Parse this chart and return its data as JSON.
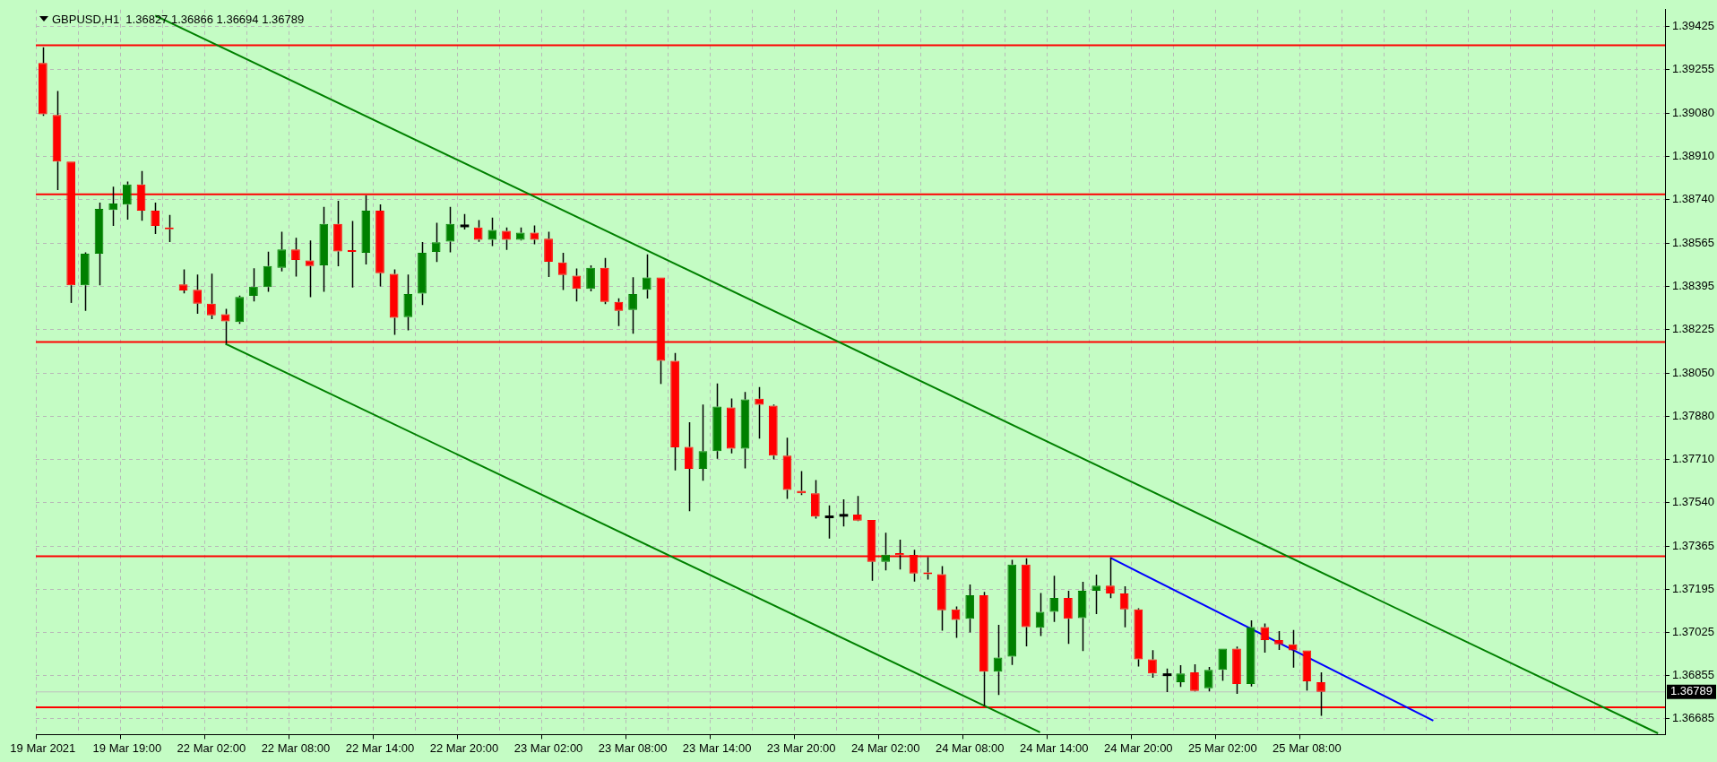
{
  "chart_data": {
    "type": "candlestick",
    "title": "GBPUSD,H1  1.36827 1.36866 1.36694 1.36789",
    "categories": [
      "19 Mar 2021",
      null,
      null,
      null,
      null,
      null,
      "19 Mar 19:00",
      null,
      null,
      null,
      null,
      null,
      "22 Mar 02:00",
      null,
      null,
      null,
      null,
      null,
      "22 Mar 08:00",
      null,
      null,
      null,
      null,
      null,
      "22 Mar 14:00",
      null,
      null,
      null,
      null,
      null,
      "22 Mar 20:00",
      null,
      null,
      null,
      null,
      null,
      "23 Mar 02:00",
      null,
      null,
      null,
      null,
      null,
      "23 Mar 08:00",
      null,
      null,
      null,
      null,
      null,
      "23 Mar 14:00",
      null,
      null,
      null,
      null,
      null,
      "23 Mar 20:00",
      null,
      null,
      null,
      null,
      null,
      "24 Mar 02:00",
      null,
      null,
      null,
      null,
      null,
      "24 Mar 08:00",
      null,
      null,
      null,
      null,
      null,
      "24 Mar 14:00",
      null,
      null,
      null,
      null,
      null,
      "24 Mar 20:00",
      null,
      null,
      null,
      null,
      null,
      "25 Mar 02:00",
      null,
      null,
      null,
      null,
      null,
      "25 Mar 08:00",
      null,
      null,
      null,
      null,
      null,
      null,
      null,
      null,
      null,
      null,
      null,
      null,
      null,
      null,
      null,
      null,
      null,
      null,
      null,
      null,
      null,
      null,
      null,
      null,
      null
    ],
    "ohlc": [
      [
        1.39279,
        1.39341,
        1.3907,
        1.39076
      ],
      [
        1.39073,
        1.39168,
        1.38776,
        1.38889
      ],
      [
        1.38889,
        1.38889,
        1.38329,
        1.38399
      ],
      [
        1.38399,
        1.38529,
        1.38298,
        1.38524
      ],
      [
        1.38524,
        1.38726,
        1.38399,
        1.38701
      ],
      [
        1.38697,
        1.38789,
        1.38634,
        1.38723
      ],
      [
        1.38718,
        1.3881,
        1.38659,
        1.38798
      ],
      [
        1.38798,
        1.38851,
        1.38654,
        1.38694
      ],
      [
        1.38694,
        1.38726,
        1.38602,
        1.38634
      ],
      [
        1.38628,
        1.38677,
        1.3857,
        1.38621
      ],
      [
        1.38402,
        1.38462,
        1.38367,
        1.38378
      ],
      [
        1.38381,
        1.38441,
        1.38286,
        1.38326
      ],
      [
        1.38326,
        1.38445,
        1.38265,
        1.3828
      ],
      [
        1.38284,
        1.38306,
        1.38167,
        1.38256
      ],
      [
        1.38253,
        1.38358,
        1.38246,
        1.38353
      ],
      [
        1.38357,
        1.38466,
        1.38335,
        1.38393
      ],
      [
        1.38392,
        1.38532,
        1.38373,
        1.38475
      ],
      [
        1.38468,
        1.38611,
        1.38454,
        1.38541
      ],
      [
        1.38541,
        1.38587,
        1.38433,
        1.38499
      ],
      [
        1.38497,
        1.38576,
        1.38352,
        1.38475
      ],
      [
        1.38478,
        1.38709,
        1.38373,
        1.38642
      ],
      [
        1.38642,
        1.38733,
        1.38474,
        1.38533
      ],
      [
        1.38538,
        1.38653,
        1.3839,
        1.38531
      ],
      [
        1.38527,
        1.38755,
        1.38481,
        1.38694
      ],
      [
        1.38694,
        1.38719,
        1.38394,
        1.38447
      ],
      [
        1.38444,
        1.38462,
        1.38203,
        1.3827
      ],
      [
        1.38273,
        1.38441,
        1.3822,
        1.38364
      ],
      [
        1.38366,
        1.3857,
        1.38321,
        1.38527
      ],
      [
        1.38531,
        1.38646,
        1.38491,
        1.38569
      ],
      [
        1.38572,
        1.38709,
        1.38529,
        1.38642
      ],
      [
        1.38634,
        1.38681,
        1.3862,
        1.38634
      ],
      [
        1.38628,
        1.38657,
        1.38571,
        1.38579
      ],
      [
        1.38579,
        1.38667,
        1.38554,
        1.38618
      ],
      [
        1.38614,
        1.38628,
        1.38539,
        1.38579
      ],
      [
        1.38579,
        1.38628,
        1.38576,
        1.38607
      ],
      [
        1.38607,
        1.38636,
        1.38561,
        1.38579
      ],
      [
        1.38583,
        1.38611,
        1.38432,
        1.38492
      ],
      [
        1.38489,
        1.38527,
        1.3838,
        1.3844
      ],
      [
        1.38437,
        1.38465,
        1.38335,
        1.38385
      ],
      [
        1.38385,
        1.38478,
        1.38375,
        1.38468
      ],
      [
        1.38468,
        1.38507,
        1.38324,
        1.38333
      ],
      [
        1.38333,
        1.38347,
        1.38237,
        1.38298
      ],
      [
        1.38301,
        1.38431,
        1.38207,
        1.38364
      ],
      [
        1.38381,
        1.38521,
        1.38346,
        1.3843
      ],
      [
        1.3843,
        1.3843,
        1.38008,
        1.381
      ],
      [
        1.381,
        1.38131,
        1.37666,
        1.37757
      ],
      [
        1.37759,
        1.37857,
        1.37504,
        1.37672
      ],
      [
        1.37672,
        1.37927,
        1.37625,
        1.37742
      ],
      [
        1.37742,
        1.3801,
        1.37712,
        1.37919
      ],
      [
        1.37915,
        1.37951,
        1.37733,
        1.37752
      ],
      [
        1.37752,
        1.37976,
        1.37674,
        1.37947
      ],
      [
        1.3795,
        1.37996,
        1.37792,
        1.37926
      ],
      [
        1.37922,
        1.37927,
        1.37709,
        1.37724
      ],
      [
        1.37724,
        1.37795,
        1.37553,
        1.37589
      ],
      [
        1.37585,
        1.37663,
        1.37568,
        1.37575
      ],
      [
        1.37575,
        1.37628,
        1.37475,
        1.37483
      ],
      [
        1.37482,
        1.37527,
        1.37396,
        1.37482
      ],
      [
        1.37488,
        1.37551,
        1.37444,
        1.37488
      ],
      [
        1.37491,
        1.37565,
        1.37465,
        1.37467
      ],
      [
        1.3747,
        1.3747,
        1.37229,
        1.37304
      ],
      [
        1.37304,
        1.37419,
        1.3727,
        1.37332
      ],
      [
        1.37338,
        1.37392,
        1.37274,
        1.3733
      ],
      [
        1.37331,
        1.37352,
        1.37226,
        1.37258
      ],
      [
        1.37262,
        1.37322,
        1.37234,
        1.37255
      ],
      [
        1.37255,
        1.37287,
        1.37031,
        1.37112
      ],
      [
        1.37116,
        1.37127,
        1.37003,
        1.37074
      ],
      [
        1.37078,
        1.37214,
        1.37024,
        1.37172
      ],
      [
        1.37172,
        1.37185,
        1.36734,
        1.36869
      ],
      [
        1.36869,
        1.37054,
        1.36777,
        1.36925
      ],
      [
        1.36928,
        1.37312,
        1.36896,
        1.37293
      ],
      [
        1.37293,
        1.37318,
        1.36969,
        1.37046
      ],
      [
        1.37043,
        1.3718,
        1.3701,
        1.37106
      ],
      [
        1.37106,
        1.37249,
        1.37066,
        1.37161
      ],
      [
        1.37161,
        1.37189,
        1.36979,
        1.37078
      ],
      [
        1.37081,
        1.37225,
        1.36951,
        1.37189
      ],
      [
        1.37189,
        1.37253,
        1.37097,
        1.3721
      ],
      [
        1.3721,
        1.3732,
        1.3716,
        1.37179
      ],
      [
        1.37179,
        1.37207,
        1.37045,
        1.37116
      ],
      [
        1.37116,
        1.3712,
        1.36889,
        1.36918
      ],
      [
        1.36918,
        1.36954,
        1.36845,
        1.36862
      ],
      [
        1.36857,
        1.36881,
        1.36788,
        1.36857
      ],
      [
        1.36827,
        1.36895,
        1.36809,
        1.36862
      ],
      [
        1.36866,
        1.36898,
        1.36791,
        1.36793
      ],
      [
        1.36803,
        1.36888,
        1.36791,
        1.36876
      ],
      [
        1.36876,
        1.3696,
        1.36833,
        1.3696
      ],
      [
        1.3696,
        1.36968,
        1.36781,
        1.3682
      ],
      [
        1.3682,
        1.37072,
        1.3681,
        1.37046
      ],
      [
        1.37046,
        1.3706,
        1.36944,
        1.36994
      ],
      [
        1.36994,
        1.3703,
        1.36955,
        1.36977
      ],
      [
        1.36977,
        1.37034,
        1.36885,
        1.36953
      ],
      [
        1.36953,
        1.36953,
        1.36794,
        1.36831
      ],
      [
        1.36827,
        1.36866,
        1.36694,
        1.36789
      ],
      null,
      null,
      null,
      null,
      null,
      null,
      null,
      null,
      null,
      null,
      null,
      null,
      null,
      null,
      null,
      null,
      null,
      null,
      null,
      null,
      null,
      null,
      null,
      null
    ],
    "colors": [
      "#ff0000",
      "#ff0000",
      "#ff0000",
      "#008000",
      "#008000",
      "#008000",
      "#008000",
      "#ff0000",
      "#ff0000",
      "#ff0000",
      "#ff0000",
      "#ff0000",
      "#ff0000",
      "#ff0000",
      "#008000",
      "#008000",
      "#008000",
      "#008000",
      "#ff0000",
      "#ff0000",
      "#008000",
      "#ff0000",
      "#ff0000",
      "#008000",
      "#ff0000",
      "#ff0000",
      "#008000",
      "#008000",
      "#008000",
      "#008000",
      "#000000",
      "#ff0000",
      "#008000",
      "#ff0000",
      "#008000",
      "#ff0000",
      "#ff0000",
      "#ff0000",
      "#ff0000",
      "#008000",
      "#ff0000",
      "#ff0000",
      "#008000",
      "#008000",
      "#ff0000",
      "#ff0000",
      "#ff0000",
      "#008000",
      "#008000",
      "#ff0000",
      "#008000",
      "#ff0000",
      "#ff0000",
      "#ff0000",
      "#ff0000",
      "#ff0000",
      "#000000",
      "#000000",
      "#ff0000",
      "#ff0000",
      "#008000",
      "#ff0000",
      "#ff0000",
      "#ff0000",
      "#ff0000",
      "#ff0000",
      "#008000",
      "#ff0000",
      "#008000",
      "#008000",
      "#ff0000",
      "#008000",
      "#008000",
      "#ff0000",
      "#008000",
      "#008000",
      "#ff0000",
      "#ff0000",
      "#ff0000",
      "#ff0000",
      "#000000",
      "#008000",
      "#ff0000",
      "#008000",
      "#008000",
      "#ff0000",
      "#008000",
      "#ff0000",
      "#ff0000",
      "#ff0000",
      "#ff0000",
      "#ff0000",
      null,
      null,
      null,
      null,
      null,
      null,
      null,
      null,
      null,
      null,
      null,
      null,
      null,
      null,
      null,
      null,
      null,
      null,
      null,
      null,
      null,
      null,
      null,
      null
    ],
    "series": [
      {
        "type": "line",
        "color": "#008000",
        "values": [
          null,
          null,
          null,
          null,
          null,
          null,
          null,
          null,
          1.39467,
          null,
          null,
          null,
          null,
          null,
          null,
          null,
          null,
          null,
          null,
          null,
          null,
          null,
          null,
          null,
          null,
          null,
          null,
          null,
          null,
          null,
          null,
          null,
          null,
          null,
          null,
          null,
          null,
          null,
          null,
          null,
          null,
          null,
          null,
          null,
          null,
          null,
          null,
          null,
          null,
          null,
          null,
          null,
          null,
          null,
          null,
          null,
          null,
          null,
          null,
          null,
          null,
          null,
          null,
          null,
          null,
          null,
          null,
          null,
          null,
          null,
          null,
          null,
          null,
          null,
          null,
          null,
          null,
          null,
          null,
          null,
          null,
          null,
          null,
          null,
          null,
          null,
          null,
          null,
          null,
          null,
          null,
          null,
          null,
          null,
          null,
          null,
          null,
          null,
          null,
          null,
          null,
          null,
          null,
          null,
          null,
          null,
          null,
          null,
          null,
          null,
          null,
          null,
          null,
          null,
          null,
          1.36625
        ]
      },
      {
        "type": "line",
        "color": "#008000",
        "values": [
          null,
          null,
          null,
          null,
          null,
          null,
          null,
          null,
          null,
          null,
          null,
          null,
          null,
          1.38167,
          null,
          null,
          null,
          null,
          null,
          null,
          null,
          null,
          null,
          null,
          null,
          null,
          null,
          null,
          null,
          null,
          null,
          null,
          null,
          null,
          null,
          null,
          null,
          null,
          null,
          null,
          null,
          null,
          null,
          null,
          null,
          null,
          null,
          null,
          null,
          null,
          null,
          null,
          null,
          null,
          null,
          null,
          null,
          null,
          null,
          null,
          null,
          null,
          null,
          null,
          null,
          null,
          null,
          null,
          null,
          null,
          null,
          1.36629,
          null,
          null,
          null,
          null,
          null,
          null,
          null,
          null,
          null,
          null,
          null,
          null,
          null,
          null,
          null,
          null,
          null,
          null,
          null,
          null,
          null,
          null,
          null,
          null,
          null,
          null,
          null,
          null,
          null,
          null,
          null,
          null,
          null,
          null,
          null,
          null,
          null,
          null,
          null,
          null,
          null,
          null,
          null,
          null
        ]
      },
      {
        "type": "line",
        "color": "#0000ff",
        "values": [
          null,
          null,
          null,
          null,
          null,
          null,
          null,
          null,
          null,
          null,
          null,
          null,
          null,
          null,
          null,
          null,
          null,
          null,
          null,
          null,
          null,
          null,
          null,
          null,
          null,
          null,
          null,
          null,
          null,
          null,
          null,
          null,
          null,
          null,
          null,
          null,
          null,
          null,
          null,
          null,
          null,
          null,
          null,
          null,
          null,
          null,
          null,
          null,
          null,
          null,
          null,
          null,
          null,
          null,
          null,
          null,
          null,
          null,
          null,
          null,
          null,
          null,
          null,
          null,
          null,
          null,
          null,
          null,
          null,
          null,
          null,
          null,
          null,
          null,
          null,
          null,
          1.3732,
          null,
          null,
          null,
          null,
          null,
          null,
          null,
          null,
          null,
          null,
          null,
          null,
          null,
          null,
          null,
          null,
          null,
          null,
          null,
          null,
          null,
          null,
          1.36675,
          null,
          null,
          null,
          null,
          null,
          null,
          null,
          null,
          null,
          null,
          null,
          null,
          null,
          null,
          null,
          null
        ]
      }
    ],
    "marker": "none",
    "ylim": [
      1.3662,
      1.3949
    ],
    "yticks": [
      1.39425,
      1.39255,
      {
        "value": 1.3908,
        "label": "1.39080"
      },
      {
        "value": 1.3891,
        "label": "1.38910"
      },
      {
        "value": 1.3874,
        "label": "1.38740"
      },
      1.38565,
      1.38395,
      1.38225,
      {
        "value": 1.3805,
        "label": "1.38050"
      },
      {
        "value": 1.3788,
        "label": "1.37880"
      },
      {
        "value": 1.3771,
        "label": "1.37710"
      },
      {
        "value": 1.3754,
        "label": "1.37540"
      },
      1.37365,
      1.37195,
      1.37025,
      1.36855,
      1.36685
    ],
    "ref_lines": [
      {
        "axis": "y",
        "value": 1.39349,
        "color": "#ff0000"
      },
      {
        "axis": "y",
        "value": 1.38759,
        "color": "#ff0000"
      },
      {
        "axis": "y",
        "value": 1.38174,
        "color": "#ff0000"
      },
      {
        "axis": "y",
        "value": 1.37326,
        "color": "#ff0000"
      },
      {
        "axis": "y",
        "value": 1.36728,
        "color": "#ff0000"
      },
      {
        "axis": "y",
        "value": 1.36789,
        "label": "1.36789",
        "color": "#c0c0c0"
      }
    ],
    "grid": true,
    "legend": false
  }
}
